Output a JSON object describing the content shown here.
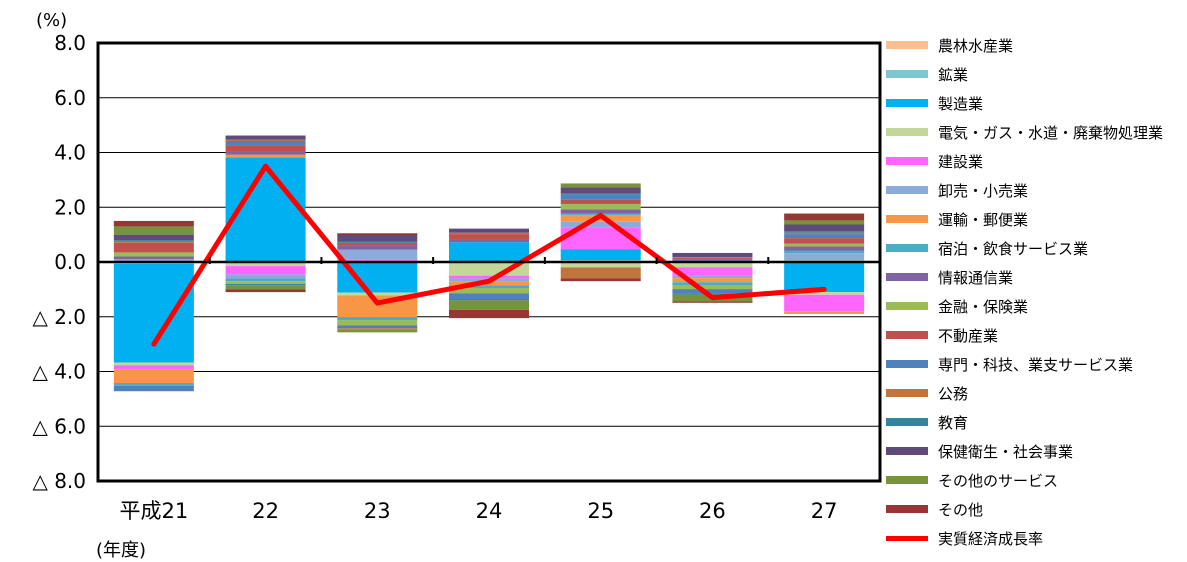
{
  "chart_data": {
    "type": "bar",
    "stacked": true,
    "unit": "(%)",
    "x_axis_note": "(年度)",
    "categories": [
      "平成21",
      "22",
      "23",
      "24",
      "25",
      "26",
      "27"
    ],
    "ylim": [
      -8,
      8
    ],
    "yticks": [
      {
        "value": 8,
        "label": "8.0"
      },
      {
        "value": 6,
        "label": "6.0"
      },
      {
        "value": 4,
        "label": "4.0"
      },
      {
        "value": 2,
        "label": "2.0"
      },
      {
        "value": 0,
        "label": "0.0"
      },
      {
        "value": -2,
        "label": "△ 2.0"
      },
      {
        "value": -4,
        "label": "△ 4.0"
      },
      {
        "value": -6,
        "label": "△ 6.0"
      },
      {
        "value": -8,
        "label": "△ 8.0"
      }
    ],
    "grid": true,
    "legend_position": "right",
    "series": [
      {
        "name": "農林水産業",
        "color": "#fbbf8f",
        "values": [
          -0.05,
          -0.05,
          0.05,
          -0.05,
          0.05,
          -0.02,
          0.05
        ]
      },
      {
        "name": "鉱業",
        "color": "#7fc5d0",
        "values": [
          -0.02,
          0.02,
          -0.02,
          0.02,
          0.02,
          -0.02,
          0.02
        ]
      },
      {
        "name": "製造業",
        "color": "#00b0f0",
        "values": [
          -3.6,
          3.8,
          -1.1,
          0.7,
          0.4,
          0.05,
          -1.1
        ]
      },
      {
        "name": "電気・ガス・水道・廃棄物処理業",
        "color": "#c4d79b",
        "values": [
          -0.1,
          -0.1,
          -0.1,
          -0.45,
          -0.2,
          -0.15,
          -0.1
        ]
      },
      {
        "name": "建設業",
        "color": "#ff66ff",
        "values": [
          -0.15,
          -0.3,
          0.05,
          -0.1,
          0.8,
          -0.3,
          -0.6
        ]
      },
      {
        "name": "卸売・小売業",
        "color": "#8eaadb",
        "values": [
          0.1,
          -0.15,
          0.35,
          -0.1,
          0.2,
          -0.1,
          0.25
        ]
      },
      {
        "name": "運輸・郵便業",
        "color": "#f79646",
        "values": [
          -0.5,
          0.1,
          -0.8,
          -0.15,
          0.25,
          -0.15,
          -0.1
        ]
      },
      {
        "name": "宿泊・飲食サービス業",
        "color": "#4bacc6",
        "values": [
          -0.1,
          -0.1,
          -0.1,
          -0.1,
          0.05,
          -0.1,
          0.1
        ]
      },
      {
        "name": "情報通信業",
        "color": "#8064a2",
        "values": [
          0.1,
          0.1,
          0.15,
          0.1,
          0.15,
          0.05,
          0.15
        ]
      },
      {
        "name": "金融・保険業",
        "color": "#9bbb59",
        "values": [
          0.15,
          -0.1,
          -0.2,
          -0.2,
          0.2,
          -0.15,
          0.1
        ]
      },
      {
        "name": "不動産業",
        "color": "#c0504d",
        "values": [
          0.35,
          0.25,
          0.1,
          0.2,
          0.15,
          0.05,
          0.2
        ]
      },
      {
        "name": "専門・科技、業支サービス業",
        "color": "#4f81bd",
        "values": [
          -0.2,
          0.15,
          -0.1,
          -0.2,
          0.2,
          -0.15,
          0.15
        ]
      },
      {
        "name": "公務",
        "color": "#c0753e",
        "values": [
          0.05,
          0.05,
          -0.05,
          0.05,
          -0.4,
          0.03,
          0.05
        ]
      },
      {
        "name": "教育",
        "color": "#31859c",
        "values": [
          0.05,
          -0.05,
          0.05,
          -0.05,
          0.05,
          -0.05,
          0.05
        ]
      },
      {
        "name": "保健衛生・社会事業",
        "color": "#604a7b",
        "values": [
          0.2,
          0.15,
          0.2,
          0.15,
          0.2,
          0.15,
          0.25
        ]
      },
      {
        "name": "その他のサービス",
        "color": "#77933c",
        "values": [
          0.3,
          -0.15,
          -0.1,
          -0.35,
          0.15,
          -0.25,
          0.15
        ]
      },
      {
        "name": "その他",
        "color": "#953735",
        "values": [
          0.2,
          -0.1,
          0.1,
          -0.3,
          -0.1,
          -0.05,
          0.25
        ]
      }
    ],
    "line_series": {
      "name": "実質経済成長率",
      "color": "#ff0000",
      "values": [
        -3.0,
        3.5,
        -1.5,
        -0.7,
        1.7,
        -1.3,
        -1.0
      ]
    }
  }
}
